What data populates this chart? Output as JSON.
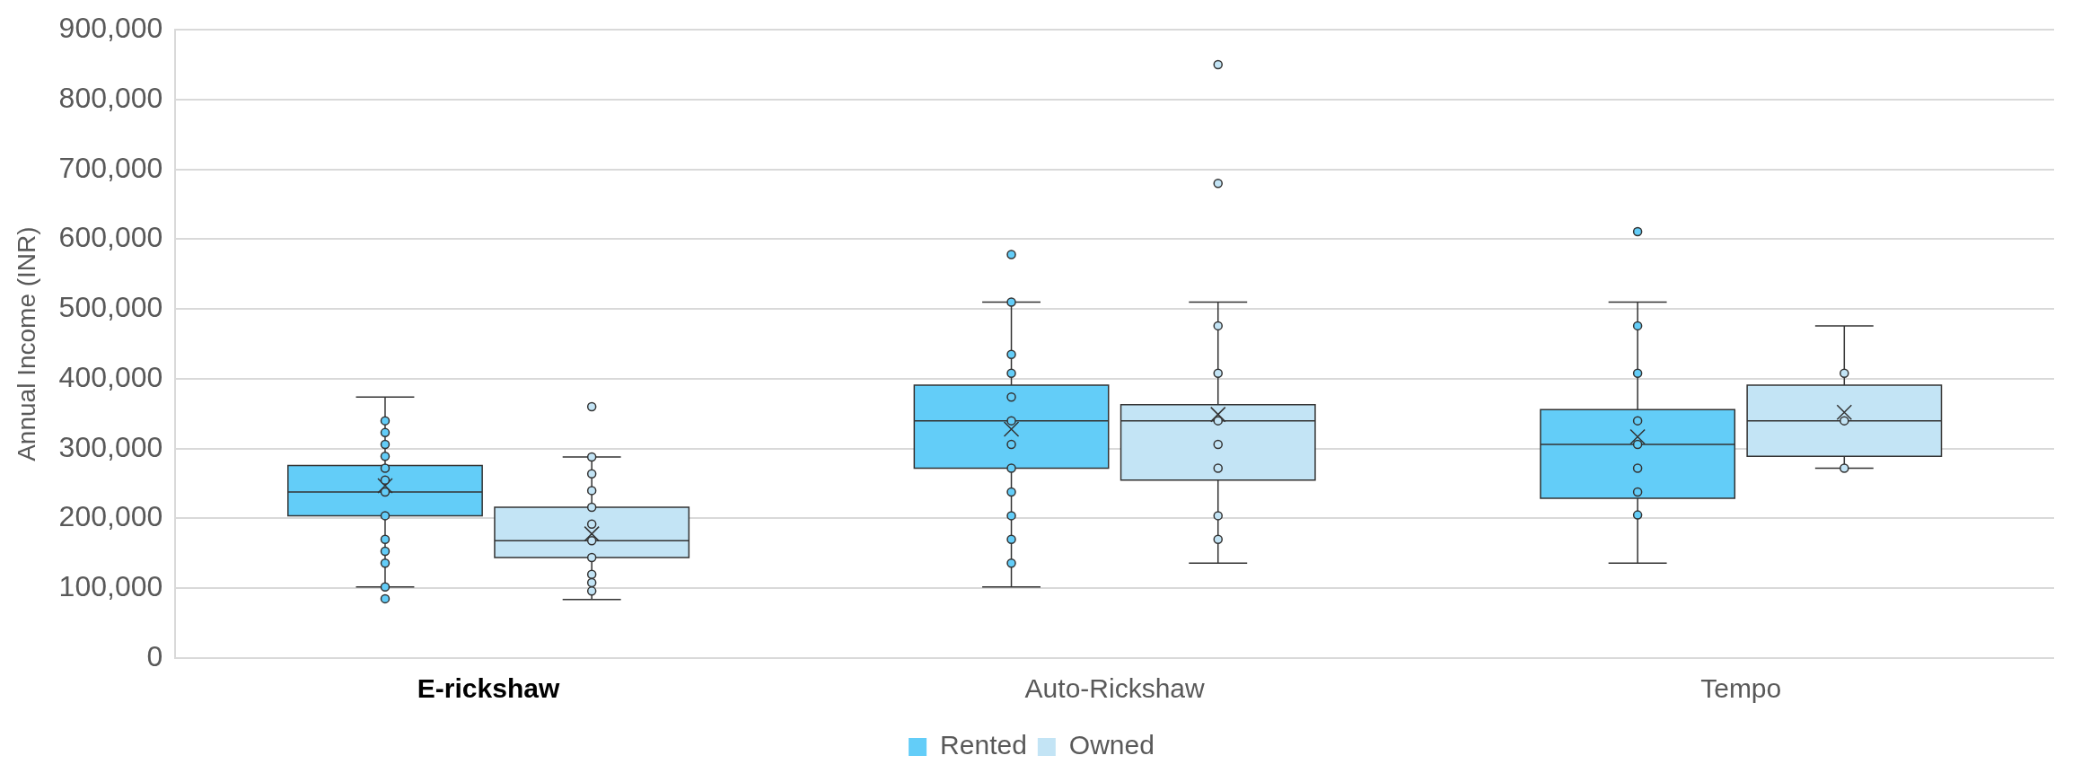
{
  "chart_data": {
    "type": "box",
    "ylabel": "Annual Income (INR)",
    "categories": [
      "E-rickshaw",
      "Auto-Rickshaw",
      "Tempo"
    ],
    "ylim": [
      0,
      900000
    ],
    "yticks": [
      0,
      {
        "value": 100000,
        "label": "100,000"
      },
      {
        "value": 200000,
        "label": "200,000"
      },
      {
        "value": 300000,
        "label": "300,000"
      },
      {
        "value": 400000,
        "label": "400,000"
      },
      {
        "value": 500000,
        "label": "500,000"
      },
      {
        "value": 600000,
        "label": "600,000"
      },
      {
        "value": 700000,
        "label": "700,000"
      },
      {
        "value": 800000,
        "label": "800,000"
      },
      {
        "value": 900000,
        "label": "900,000"
      }
    ],
    "grid": "y",
    "legend": "bottom",
    "marker": "circle",
    "series": [
      {
        "name": "Rented",
        "color": "#63cdf8",
        "boxes": [
          {
            "low": 102000,
            "q1": 204000,
            "median": 238000,
            "q3": 276000,
            "high": 374000,
            "mean": 247000,
            "outliers": [
              340000,
              323000,
              306000,
              289000,
              272000,
              255000,
              238000,
              204000,
              170000,
              153000,
              136000,
              102000,
              85000
            ]
          },
          {
            "low": 102000,
            "q1": 272000,
            "median": 340000,
            "q3": 391000,
            "high": 510000,
            "mean": 328000,
            "outliers": [
              578000,
              510000,
              435000,
              408000,
              374000,
              340000,
              306000,
              272000,
              238000,
              204000,
              170000,
              136000
            ]
          },
          {
            "low": 136000,
            "q1": 229000,
            "median": 306000,
            "q3": 356000,
            "high": 510000,
            "mean": 317000,
            "outliers": [
              611000,
              476000,
              408000,
              340000,
              306000,
              272000,
              238000,
              205000
            ]
          }
        ]
      },
      {
        "name": "Owned",
        "color": "#c3e4f5",
        "boxes": [
          {
            "low": 84000,
            "q1": 144000,
            "median": 168000,
            "q3": 216000,
            "high": 288000,
            "mean": 178000,
            "outliers": [
              360000,
              288000,
              264000,
              240000,
              216000,
              192000,
              168000,
              144000,
              120000,
              108000,
              96000
            ]
          },
          {
            "low": 136000,
            "q1": 255000,
            "median": 340000,
            "q3": 363000,
            "high": 510000,
            "mean": 349000,
            "outliers": [
              850000,
              680000,
              476000,
              408000,
              340000,
              306000,
              272000,
              204000,
              170000
            ]
          },
          {
            "low": 272000,
            "q1": 289000,
            "median": 340000,
            "q3": 391000,
            "high": 476000,
            "mean": 352000,
            "outliers": [
              408000,
              340000,
              272000
            ]
          }
        ]
      }
    ]
  }
}
